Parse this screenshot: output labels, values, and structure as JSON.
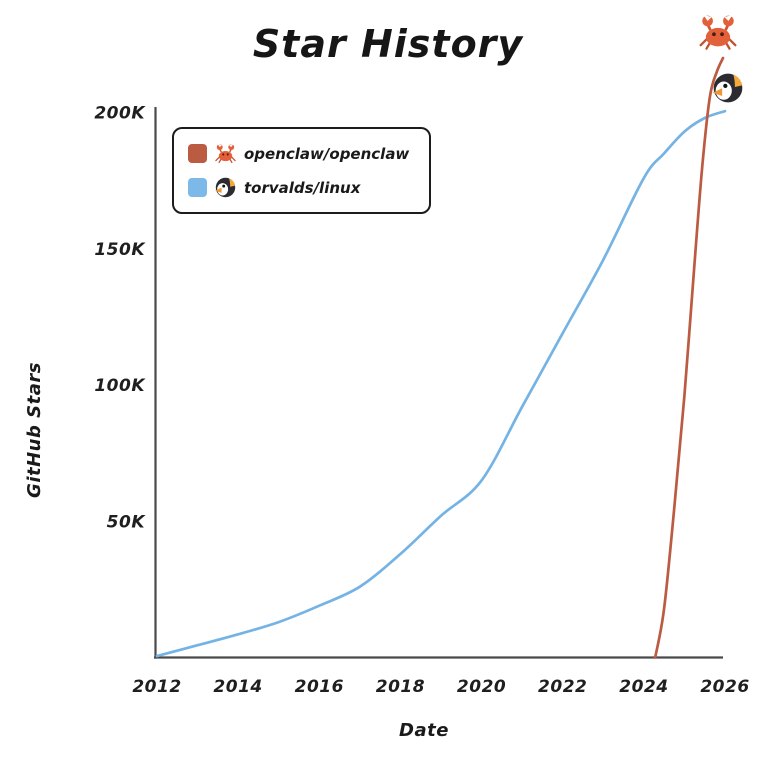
{
  "legend": {
    "items": [
      {
        "icon": "crab-icon",
        "swatch_color": "#bb5b42",
        "label": "openclaw/openclaw"
      },
      {
        "icon": "penguin-icon",
        "swatch_color": "#7cb9e8",
        "label": "torvalds/linux"
      }
    ]
  },
  "decorations": {
    "top_right_icon": "crab-icon",
    "blue_line_end_icon": "penguin-icon"
  },
  "chart_data": {
    "type": "line",
    "title": "Star History",
    "xlabel": "Date",
    "ylabel": "GitHub Stars",
    "x_ticks": [
      2012,
      2014,
      2016,
      2018,
      2020,
      2022,
      2024,
      2026
    ],
    "y_ticks": [
      {
        "value": 50000,
        "label": "50K"
      },
      {
        "value": 100000,
        "label": "100K"
      },
      {
        "value": 150000,
        "label": "150K"
      },
      {
        "value": 200000,
        "label": "200K"
      }
    ],
    "xlim": [
      2012,
      2026
    ],
    "ylim": [
      0,
      225000
    ],
    "grid": false,
    "legend_position": "top-left",
    "axis_color": "#4a4a4a",
    "series": [
      {
        "name": "openclaw/openclaw",
        "color": "#bb5b42",
        "points": [
          [
            2024.28,
            0
          ],
          [
            2024.5,
            18000
          ],
          [
            2024.75,
            55000
          ],
          [
            2025.0,
            96000
          ],
          [
            2025.25,
            145000
          ],
          [
            2025.45,
            182000
          ],
          [
            2025.63,
            206000
          ],
          [
            2025.8,
            215000
          ],
          [
            2025.95,
            220000
          ]
        ]
      },
      {
        "name": "torvalds/linux",
        "color": "#74b3e4",
        "points": [
          [
            2012,
            500
          ],
          [
            2013,
            4500
          ],
          [
            2014,
            8500
          ],
          [
            2015,
            13000
          ],
          [
            2016,
            19000
          ],
          [
            2017,
            26000
          ],
          [
            2018,
            38000
          ],
          [
            2019,
            52000
          ],
          [
            2020,
            65000
          ],
          [
            2021,
            92000
          ],
          [
            2022,
            119000
          ],
          [
            2023,
            146000
          ],
          [
            2024,
            176000
          ],
          [
            2024.5,
            185000
          ],
          [
            2025,
            193000
          ],
          [
            2025.5,
            198000
          ],
          [
            2026,
            200500
          ]
        ]
      }
    ]
  }
}
